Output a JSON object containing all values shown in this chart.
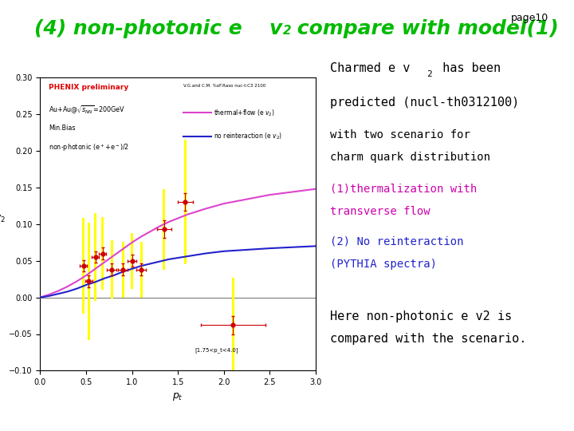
{
  "background_color": "#ffffff",
  "title_color": "#00bb00",
  "title_fontsize": 18,
  "page_label": "page10",
  "data_points_x": [
    0.47,
    0.53,
    0.6,
    0.68,
    0.78,
    0.9,
    1.0,
    1.1,
    1.35,
    1.58,
    2.1
  ],
  "data_points_y": [
    0.043,
    0.022,
    0.055,
    0.06,
    0.038,
    0.038,
    0.05,
    0.038,
    0.093,
    0.13,
    -0.038
  ],
  "stat_err_y_low": [
    0.008,
    0.008,
    0.008,
    0.008,
    0.008,
    0.008,
    0.008,
    0.008,
    0.012,
    0.012,
    0.012
  ],
  "stat_err_y_high": [
    0.008,
    0.008,
    0.008,
    0.008,
    0.008,
    0.008,
    0.008,
    0.008,
    0.012,
    0.012,
    0.012
  ],
  "stat_err_x_low": [
    0.04,
    0.04,
    0.04,
    0.04,
    0.05,
    0.05,
    0.05,
    0.05,
    0.08,
    0.08,
    0.35
  ],
  "stat_err_x_high": [
    0.04,
    0.04,
    0.04,
    0.04,
    0.05,
    0.05,
    0.05,
    0.05,
    0.08,
    0.08,
    0.35
  ],
  "sys_err_y_low": [
    0.065,
    0.08,
    0.06,
    0.05,
    0.04,
    0.038,
    0.038,
    0.038,
    0.055,
    0.085,
    0.065
  ],
  "sys_err_y_high": [
    0.065,
    0.08,
    0.06,
    0.05,
    0.04,
    0.038,
    0.038,
    0.038,
    0.055,
    0.085,
    0.065
  ],
  "sys_bar_width": 0.025,
  "thermal_x": [
    0.0,
    0.1,
    0.2,
    0.3,
    0.4,
    0.5,
    0.6,
    0.7,
    0.8,
    0.9,
    1.0,
    1.1,
    1.2,
    1.3,
    1.4,
    1.5,
    1.6,
    1.8,
    2.0,
    2.5,
    3.0
  ],
  "thermal_y": [
    0.0,
    0.004,
    0.009,
    0.015,
    0.022,
    0.03,
    0.039,
    0.048,
    0.057,
    0.066,
    0.075,
    0.083,
    0.09,
    0.097,
    0.103,
    0.108,
    0.113,
    0.121,
    0.128,
    0.14,
    0.148
  ],
  "noreint_x": [
    0.0,
    0.1,
    0.2,
    0.3,
    0.4,
    0.5,
    0.6,
    0.7,
    0.8,
    0.9,
    1.0,
    1.1,
    1.2,
    1.3,
    1.4,
    1.5,
    1.6,
    1.8,
    2.0,
    2.5,
    3.0
  ],
  "noreint_y": [
    0.0,
    0.002,
    0.005,
    0.008,
    0.012,
    0.017,
    0.021,
    0.026,
    0.03,
    0.035,
    0.039,
    0.043,
    0.046,
    0.049,
    0.052,
    0.054,
    0.056,
    0.06,
    0.063,
    0.067,
    0.07
  ],
  "thermal_color": "#dd44cc",
  "noreint_color": "#2222cc",
  "dot_color": "#cc0000",
  "sys_bar_color": "#ffff00",
  "xlim": [
    0,
    3
  ],
  "ylim": [
    -0.1,
    0.3
  ],
  "plot_bg": "#ffffff",
  "annotation_bottom": "[1.75<p_t<4.0]",
  "right_text": [
    {
      "line": "Charmed e v₂ has been",
      "color": "#000000",
      "fs": 11,
      "magenta": false
    },
    {
      "line": "predicted (nucl-th0312100)",
      "color": "#000000",
      "fs": 11,
      "magenta": false
    },
    {
      "line": "with two scenario for",
      "color": "#000000",
      "fs": 10,
      "magenta": false
    },
    {
      "line": "charm quark distribution",
      "color": "#000000",
      "fs": 10,
      "magenta": false
    },
    {
      "line": "(1)thermalization with",
      "color": "#cc00aa",
      "fs": 10,
      "magenta": true
    },
    {
      "line": "transverse flow",
      "color": "#cc00aa",
      "fs": 10,
      "magenta": true
    },
    {
      "line": "(2) No reinteraction",
      "color": "#2222cc",
      "fs": 10,
      "magenta": false
    },
    {
      "line": "(PYTHIA spectra)",
      "color": "#2222cc",
      "fs": 10,
      "magenta": false
    },
    {
      "line": "",
      "color": "#000000",
      "fs": 10,
      "magenta": false
    },
    {
      "line": "Here non-photonic e v2 is",
      "color": "#000000",
      "fs": 11,
      "magenta": false
    },
    {
      "line": "compared with the scenario.",
      "color": "#000000",
      "fs": 11,
      "magenta": false
    }
  ]
}
